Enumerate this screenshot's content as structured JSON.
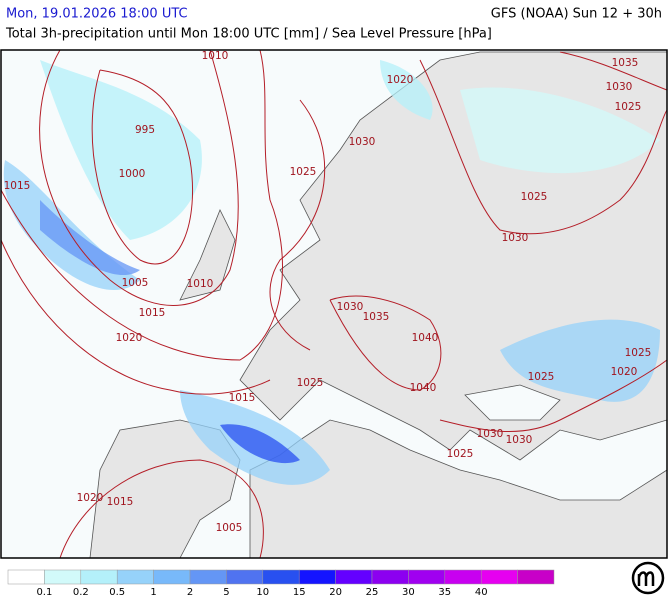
{
  "header": {
    "title": "Mon, 19.01.2026 18:00 UTC",
    "model": "GFS (NOAA) Sun 12 + 30h",
    "subtitle": "Total 3h-precipitation until Mon 18:00 UTC [mm] / Sea Level Pressure [hPa]"
  },
  "isobar_labels": [
    "1010",
    "995",
    "1000",
    "1015",
    "1005",
    "1010",
    "1015",
    "1020",
    "1020",
    "1030",
    "1025",
    "1035",
    "1030",
    "1025",
    "1025",
    "1030",
    "1030",
    "1035",
    "1040",
    "1025",
    "1040",
    "1015",
    "1025",
    "1025",
    "1020",
    "1030",
    "1030",
    "1025",
    "1020",
    "1015",
    "1005"
  ],
  "legend": {
    "colors": [
      "#ffffff",
      "#d2fafa",
      "#b4f0fa",
      "#96d2fa",
      "#78b9fa",
      "#6496f5",
      "#5073f0",
      "#2850f0",
      "#1414ff",
      "#6400ff",
      "#8c00f0",
      "#a000f0",
      "#c800f0",
      "#e600f0",
      "#c800c8"
    ],
    "labels": [
      "0.1",
      "0.2",
      "0.5",
      "1",
      "2",
      "5",
      "10",
      "15",
      "20",
      "25",
      "30",
      "35",
      "40"
    ]
  }
}
